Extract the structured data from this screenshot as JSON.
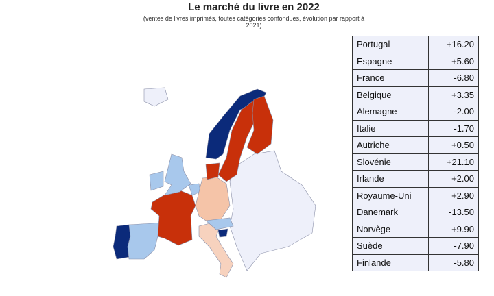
{
  "header": {
    "title": "Le marché du livre en 2022",
    "subtitle": "(ventes de livres imprimés, toutes catégories confondues, évolution par rapport à 2021)"
  },
  "table": {
    "rows": [
      [
        "Portugal",
        "+16.20"
      ],
      [
        "Espagne",
        "+5.60"
      ],
      [
        "France",
        "-6.80"
      ],
      [
        "Belgique",
        "+3.35"
      ],
      [
        "Alemagne",
        "-2.00"
      ],
      [
        "Italie",
        "-1.70"
      ],
      [
        "Autriche",
        "+0.50"
      ],
      [
        "Slovénie",
        "+21.10"
      ],
      [
        "Irlande",
        "+2.00"
      ],
      [
        "Royaume-Uni",
        "+2.90"
      ],
      [
        "Danemark",
        "-13.50"
      ],
      [
        "Norvège",
        "+9.90"
      ],
      [
        "Suède",
        "-7.90"
      ],
      [
        "Finlande",
        "-5.80"
      ]
    ]
  }
}
